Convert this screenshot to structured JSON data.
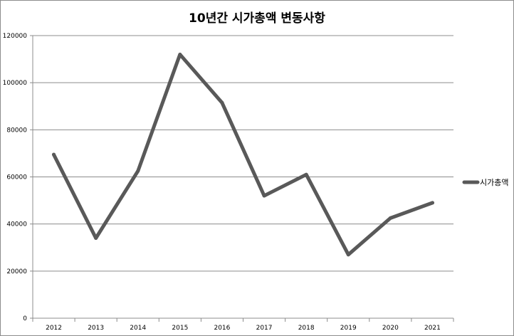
{
  "chart_data": {
    "type": "line",
    "title": "10년간 시가총액 변동사항",
    "xlabel": "",
    "ylabel": "",
    "categories": [
      "2012",
      "2013",
      "2014",
      "2015",
      "2016",
      "2017",
      "2018",
      "2019",
      "2020",
      "2021"
    ],
    "series": [
      {
        "name": "시가총액",
        "values": [
          69500,
          34000,
          62500,
          112000,
          91500,
          52000,
          61000,
          27000,
          42500,
          49000
        ],
        "color": "#595959"
      }
    ],
    "ylim": [
      0,
      120000
    ],
    "yticks": [
      0,
      20000,
      40000,
      60000,
      80000,
      100000,
      120000
    ],
    "grid": true,
    "legend": "right"
  }
}
